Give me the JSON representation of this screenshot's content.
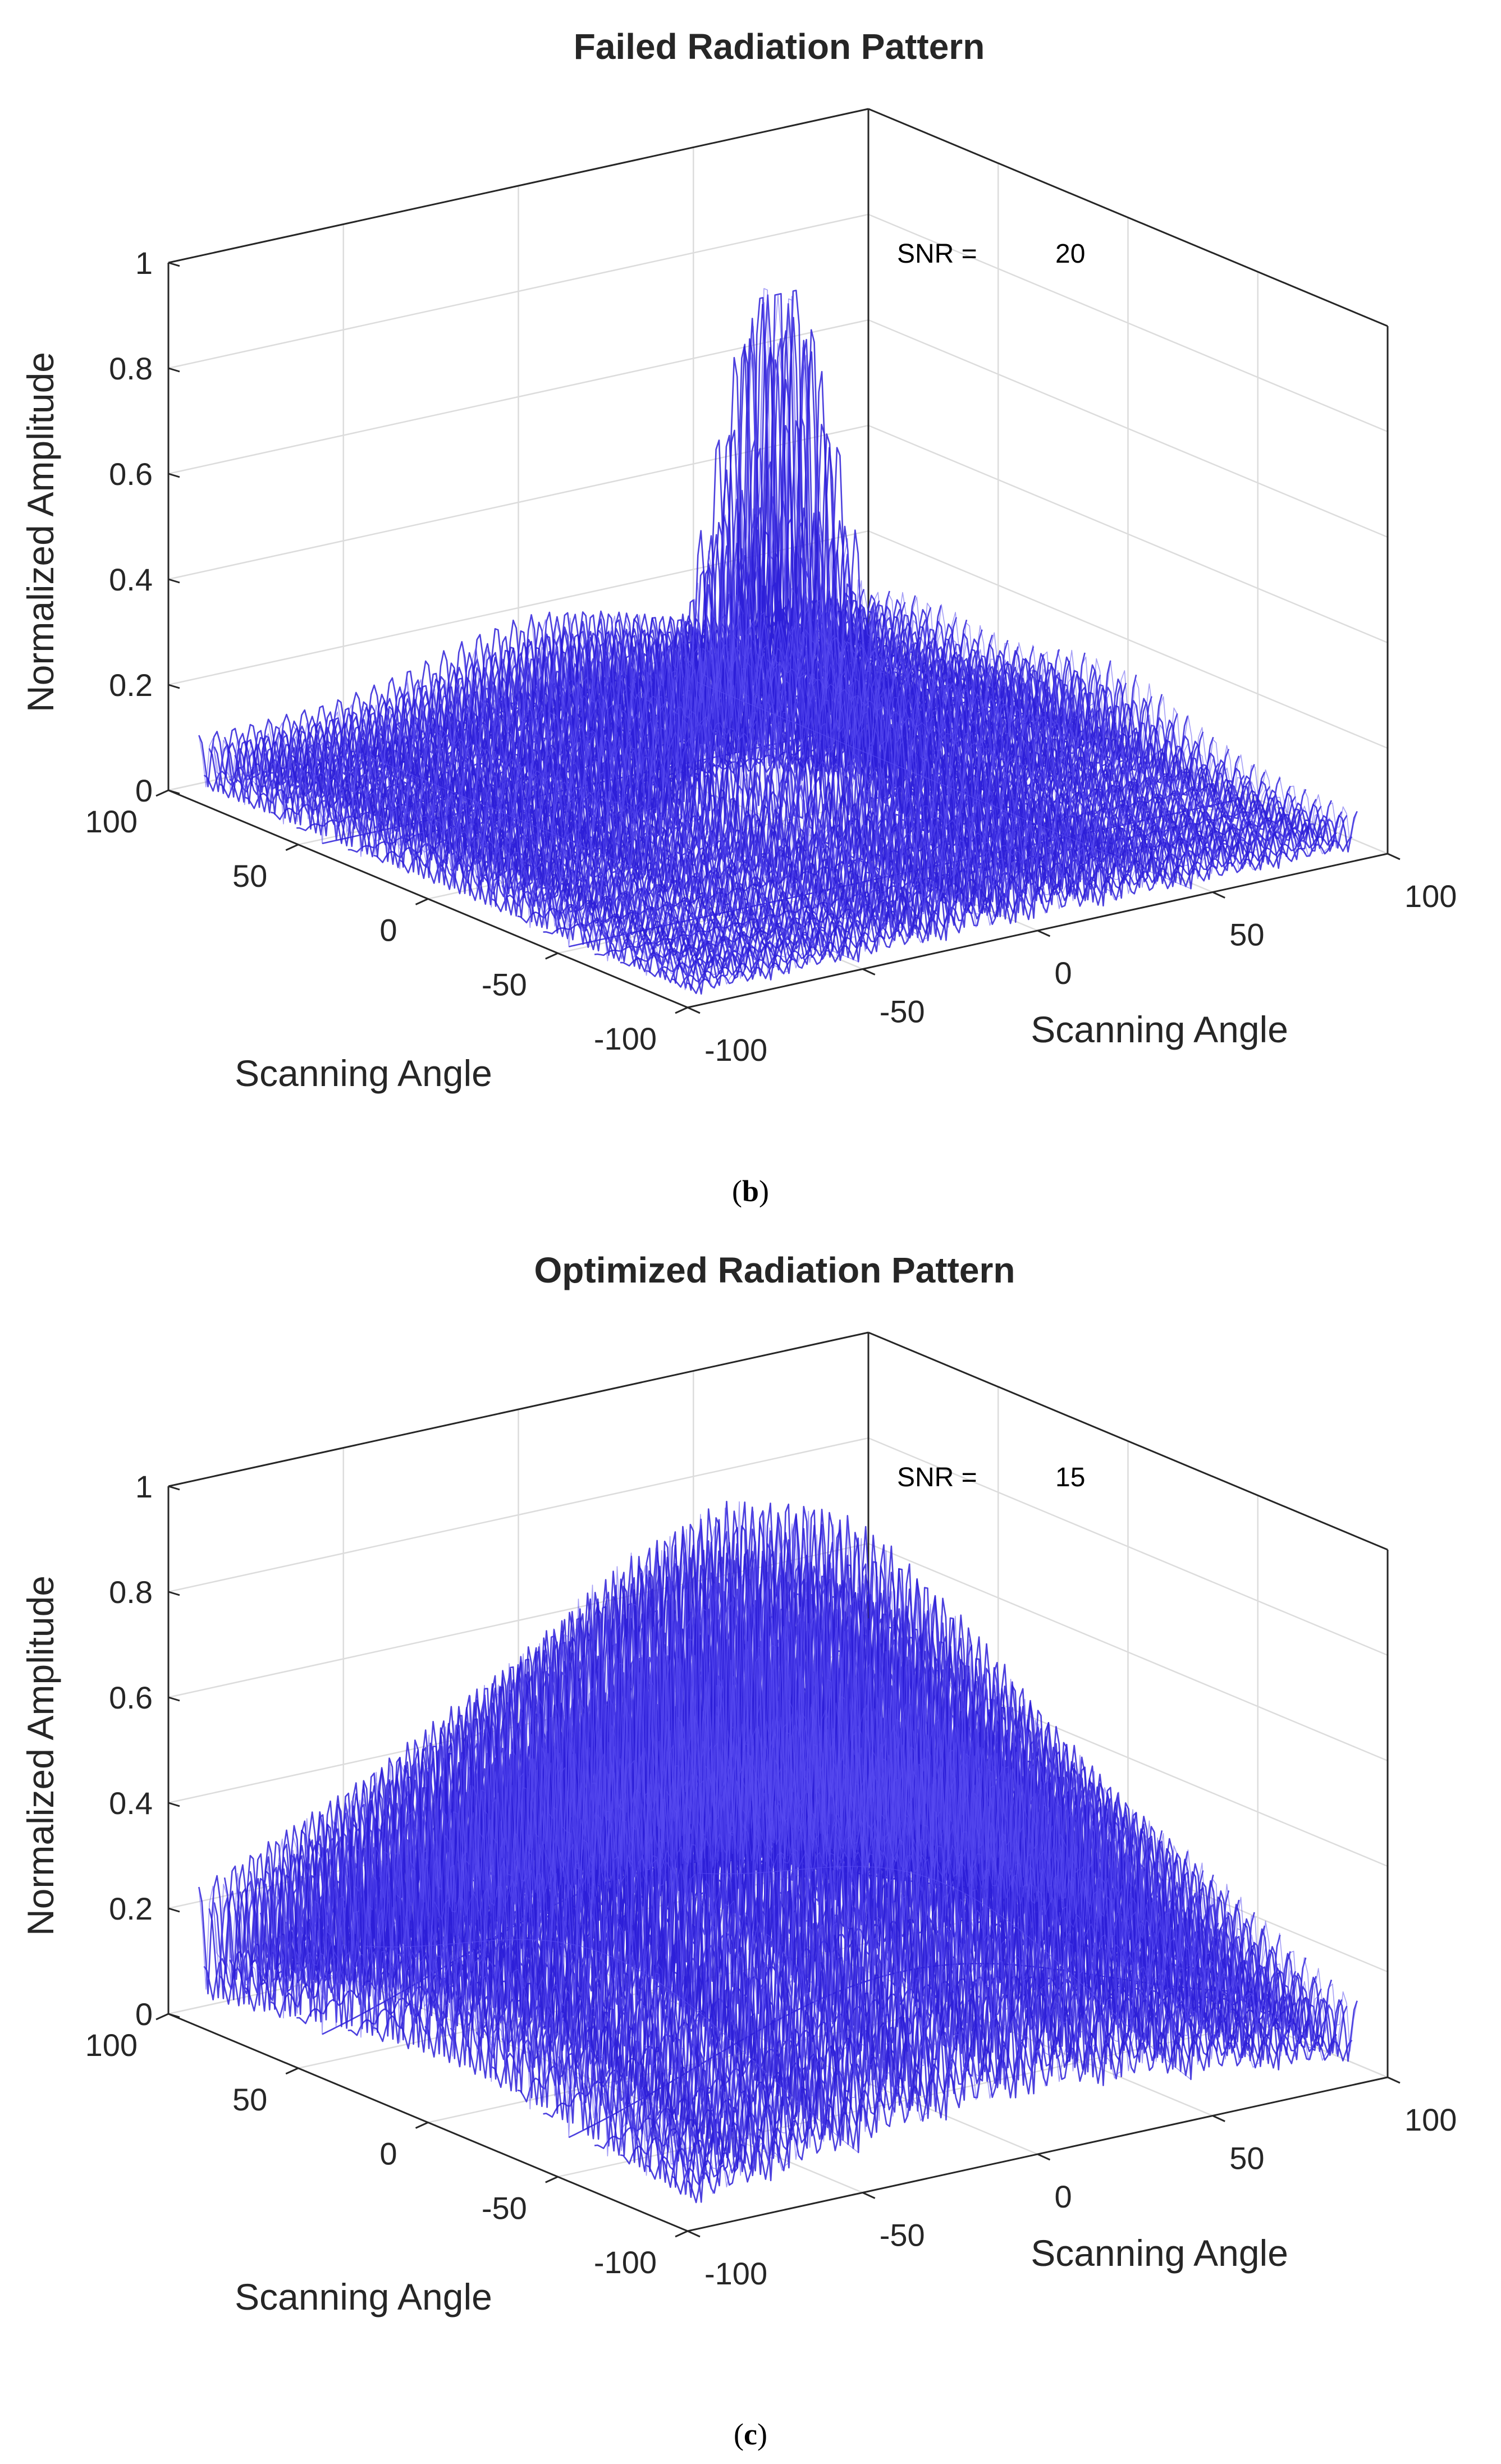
{
  "chart_data": [
    {
      "type": "surface",
      "panel_id": "b",
      "title": "Failed Radiation Pattern",
      "caption": "(b)",
      "caption_letter": "b",
      "xlabel": "Scanning Angle",
      "ylabel": "Scanning Angle",
      "zlabel": "Normalized Amplitude",
      "xlim": [
        -100,
        100
      ],
      "ylim": [
        -100,
        100
      ],
      "zlim": [
        0,
        1
      ],
      "xticks": [
        "-100",
        "-50",
        "0",
        "50",
        "100"
      ],
      "yticks": [
        "-100",
        "-50",
        "0",
        "50",
        "100"
      ],
      "zticks": [
        "0",
        "0.2",
        "0.4",
        "0.6",
        "0.8",
        "1"
      ],
      "grid": true,
      "annotation": {
        "label": "SNR =",
        "value": "20"
      },
      "surface": {
        "peak_amplitude": 0.96,
        "peak_location": [
          0,
          0
        ],
        "main_lobe_halfwidth_deg": 12,
        "sidelobe_level": 0.14,
        "sidelobe_spacing_deg": 5,
        "sidelobe_bands": [
          {
            "axis": "x",
            "center": 0,
            "width": 38,
            "level": 0.09
          },
          {
            "axis": "y",
            "center": 0,
            "width": 38,
            "level": 0.09
          },
          {
            "axis": "y",
            "center": 70,
            "width": 30,
            "level": 0.06
          }
        ],
        "color": "#2d1fd8"
      }
    },
    {
      "type": "surface",
      "panel_id": "c",
      "title": "Optimized Radiation Pattern",
      "caption": "(c)",
      "caption_letter": "c",
      "xlabel": "Scanning Angle",
      "ylabel": "Scanning Angle",
      "zlabel": "Normalized Amplitude",
      "xlim": [
        -100,
        100
      ],
      "ylim": [
        -100,
        100
      ],
      "zlim": [
        0,
        1
      ],
      "xticks": [
        "-100",
        "-50",
        "0",
        "50",
        "100"
      ],
      "yticks": [
        "-100",
        "-50",
        "0",
        "50",
        "100"
      ],
      "zticks": [
        "0",
        "0.2",
        "0.4",
        "0.6",
        "0.8",
        "1"
      ],
      "grid": true,
      "annotation": {
        "label": "SNR =",
        "value": "15"
      },
      "surface": {
        "peak_amplitude": 0.95,
        "peak_location": [
          0,
          0
        ],
        "main_lobe_halfwidth_deg": 58,
        "sidelobe_level": 0.14,
        "sidelobe_spacing_deg": 5,
        "sidelobe_bands": [
          {
            "axis": "y",
            "center": 70,
            "width": 40,
            "level": 0.1
          },
          {
            "axis": "x",
            "center": -70,
            "width": 40,
            "level": 0.05
          }
        ],
        "color": "#2d1fd8"
      }
    }
  ]
}
